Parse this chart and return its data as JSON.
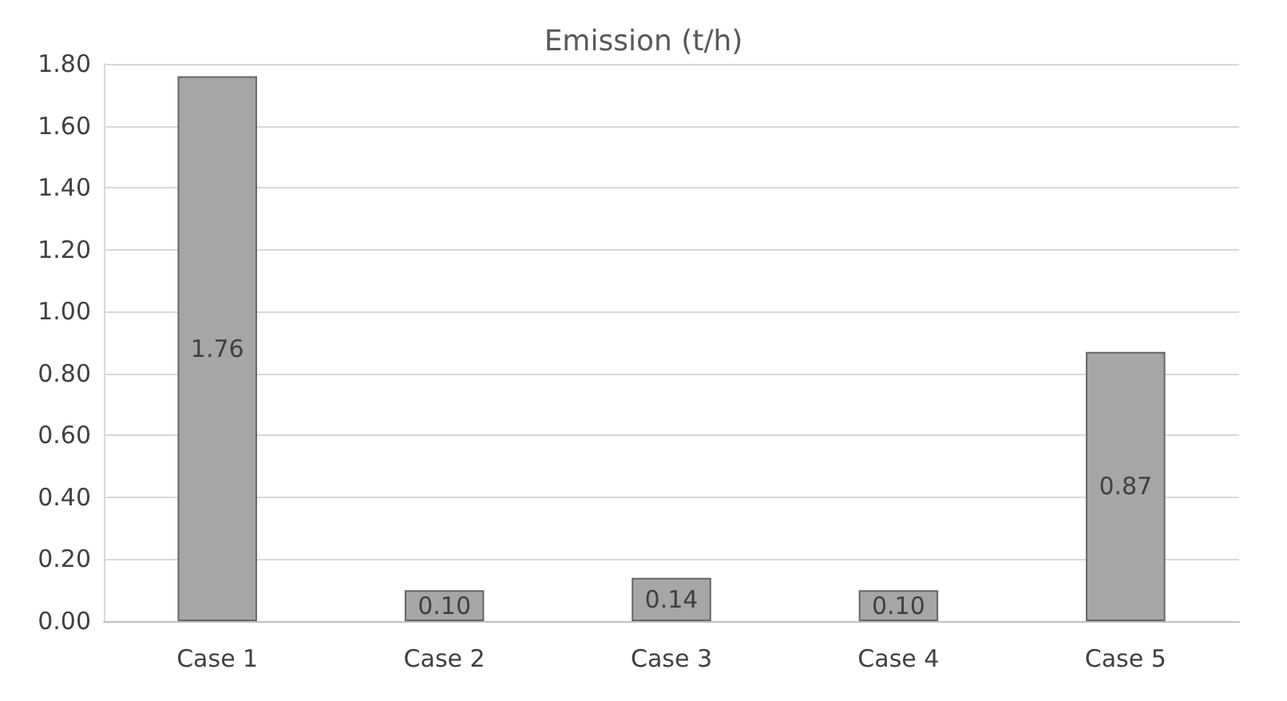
{
  "chart_data": {
    "type": "bar",
    "title": "Emission (t/h)",
    "categories": [
      "Case 1",
      "Case 2",
      "Case 3",
      "Case 4",
      "Case 5"
    ],
    "values": [
      1.76,
      0.1,
      0.14,
      0.1,
      0.87
    ],
    "value_labels": [
      "1.76",
      "0.10",
      "0.14",
      "0.10",
      "0.87"
    ],
    "color": "#a6a6a6",
    "ylim": [
      0,
      1.8
    ],
    "yticks": [
      {
        "value": 0,
        "label": "0.00"
      },
      {
        "value": 0.2,
        "label": "0.20"
      },
      {
        "value": 0.4,
        "label": "0.40"
      },
      {
        "value": 0.6,
        "label": "0.60"
      },
      {
        "value": 0.8,
        "label": "0.80"
      },
      {
        "value": 1.0,
        "label": "1.00"
      },
      {
        "value": 1.2,
        "label": "1.20"
      },
      {
        "value": 1.4,
        "label": "1.40"
      },
      {
        "value": 1.6,
        "label": "1.60"
      },
      {
        "value": 1.8,
        "label": "1.80"
      }
    ],
    "grid": true
  }
}
